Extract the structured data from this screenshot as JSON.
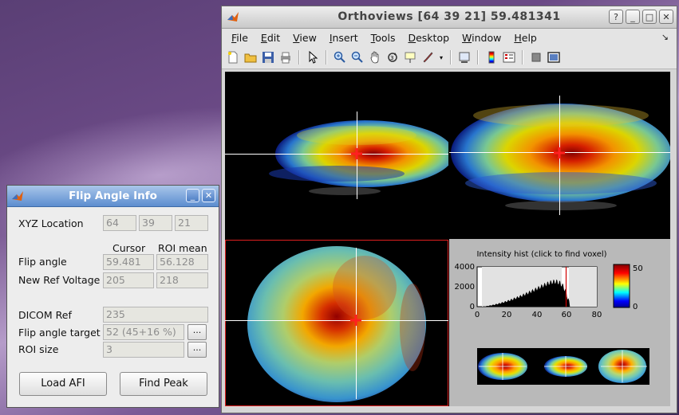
{
  "main_window": {
    "title": "Orthoviews [64 39 21] 59.481341",
    "menu": [
      {
        "label": "File",
        "key": "F",
        "rest": "ile"
      },
      {
        "label": "Edit",
        "key": "E",
        "rest": "dit"
      },
      {
        "label": "View",
        "key": "V",
        "rest": "iew"
      },
      {
        "label": "Insert",
        "key": "I",
        "rest": "nsert"
      },
      {
        "label": "Tools",
        "key": "T",
        "rest": "ools"
      },
      {
        "label": "Desktop",
        "key": "D",
        "rest": "esktop"
      },
      {
        "label": "Window",
        "key": "W",
        "rest": "indow"
      },
      {
        "label": "Help",
        "key": "H",
        "rest": "elp"
      }
    ],
    "toolbar_icons": [
      "new-figure-icon",
      "open-file-icon",
      "save-icon",
      "print-icon",
      "pointer-icon",
      "zoom-in-icon",
      "zoom-out-icon",
      "pan-hand-icon",
      "rotate-3d-icon",
      "data-cursor-icon",
      "brush-icon",
      "link-plot-icon",
      "colorbar-icon",
      "legend-icon",
      "hide-plot-tools-icon",
      "show-plot-tools-icon"
    ]
  },
  "histogram": {
    "title": "Intensity hist (click to find voxel)",
    "yticks": [
      "4000",
      "2000",
      "0"
    ],
    "xticks": [
      "0",
      "20",
      "40",
      "60",
      "80"
    ],
    "marker_x": 59.48,
    "xlim": [
      0,
      80
    ],
    "ylim": [
      0,
      4000
    ],
    "colorbar_ticks": [
      "50",
      "0"
    ]
  },
  "dialog": {
    "title": "Flip Angle Info",
    "xyz_label": "XYZ Location",
    "xyz": [
      "64",
      "39",
      "21"
    ],
    "col_cursor": "Cursor",
    "col_roi": "ROI mean",
    "flip_label": "Flip angle",
    "flip_cursor": "59.481",
    "flip_roi": "56.128",
    "voltage_label": "New Ref Voltage",
    "voltage_cursor": "205",
    "voltage_roi": "218",
    "dicom_label": "DICOM Ref",
    "dicom_value": "235",
    "target_label": "Flip angle target",
    "target_value": "52 (45+16 %)",
    "roi_label": "ROI size",
    "roi_value": "3",
    "ellipsis": "...",
    "load_btn": "Load AFI",
    "peak_btn": "Find Peak"
  }
}
